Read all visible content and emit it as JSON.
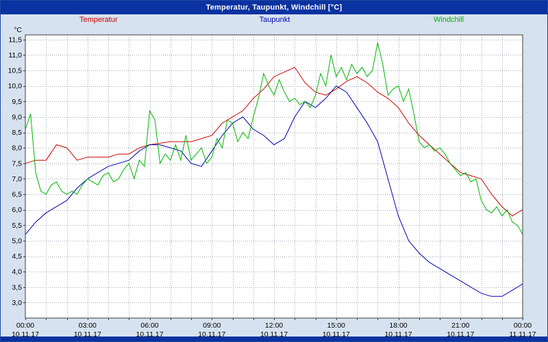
{
  "titlebar": {
    "title": "Temperatur, Taupunkt, Windchill [°C]"
  },
  "legend": {
    "items": [
      {
        "label": "Temperatur",
        "color": "#cc0000"
      },
      {
        "label": "Taupunkt",
        "color": "#0000b0"
      },
      {
        "label": "Windchill",
        "color": "#00b400"
      }
    ]
  },
  "chart_data": {
    "type": "line",
    "title": "Temperatur, Taupunkt, Windchill [°C]",
    "y_unit_label": "°C",
    "ylim": [
      2.5,
      11.65
    ],
    "y_ticks": {
      "values": [
        11.5,
        11.0,
        10.5,
        10.0,
        9.5,
        9.0,
        8.5,
        8.0,
        7.5,
        7.0,
        6.5,
        6.0,
        5.5,
        5.0,
        4.5,
        4.0,
        3.5,
        3.0
      ],
      "labels": [
        "11,5",
        "11,0",
        "10,5",
        "10,0",
        "9,5",
        "9,0",
        "8,5",
        "8,0",
        "7,5",
        "7,0",
        "6,5",
        "6,0",
        "5,5",
        "5,0",
        "4,5",
        "4,0",
        "3,5",
        "3,0"
      ]
    },
    "x_axis": {
      "hours_range": [
        0,
        24
      ],
      "minor_grid_hours": 1,
      "tick_labels": [
        {
          "hour": 0,
          "time": "00:00",
          "date": "10.11.17"
        },
        {
          "hour": 3,
          "time": "03:00",
          "date": "10.11.17"
        },
        {
          "hour": 6,
          "time": "06:00",
          "date": "10.11.17"
        },
        {
          "hour": 9,
          "time": "09:00",
          "date": "10.11.17"
        },
        {
          "hour": 12,
          "time": "12:00",
          "date": "10.11.17"
        },
        {
          "hour": 15,
          "time": "15:00",
          "date": "10.11.17"
        },
        {
          "hour": 18,
          "time": "18:00",
          "date": "10.11.17"
        },
        {
          "hour": 21,
          "time": "21:00",
          "date": "10.11.17"
        },
        {
          "hour": 24,
          "time": "00:00",
          "date": "11.11.17"
        }
      ]
    },
    "grid": {
      "style": "dotted",
      "color": "#9aa5b1",
      "legend_position": "top"
    },
    "series": [
      {
        "name": "Temperatur",
        "color": "#cc0000",
        "x_start": 0,
        "x_step": 0.5,
        "values": [
          7.5,
          7.6,
          7.6,
          8.1,
          8.0,
          7.6,
          7.7,
          7.7,
          7.7,
          7.8,
          7.8,
          8.0,
          8.1,
          8.15,
          8.2,
          8.2,
          8.2,
          8.3,
          8.4,
          8.8,
          9.0,
          9.2,
          9.6,
          9.9,
          10.3,
          10.45,
          10.6,
          10.1,
          9.8,
          9.7,
          9.9,
          10.15,
          10.3,
          10.1,
          9.8,
          9.6,
          9.3,
          8.8,
          8.4,
          8.1,
          7.8,
          7.5,
          7.2,
          7.1,
          7.0,
          6.5,
          6.1,
          5.8,
          6.0
        ]
      },
      {
        "name": "Taupunkt",
        "color": "#0000b0",
        "x_start": 0,
        "x_step": 0.5,
        "values": [
          5.2,
          5.6,
          5.9,
          6.1,
          6.3,
          6.7,
          7.0,
          7.2,
          7.4,
          7.5,
          7.6,
          7.9,
          8.1,
          8.1,
          8.0,
          7.9,
          7.5,
          7.4,
          7.9,
          8.4,
          8.8,
          9.0,
          8.6,
          8.4,
          8.1,
          8.3,
          9.0,
          9.5,
          9.3,
          9.6,
          10.0,
          9.8,
          9.3,
          8.8,
          8.2,
          7.0,
          5.8,
          5.0,
          4.6,
          4.3,
          4.1,
          3.9,
          3.7,
          3.5,
          3.3,
          3.2,
          3.2,
          3.4,
          3.6
        ]
      },
      {
        "name": "Windchill",
        "color": "#00b400",
        "x_start": 0,
        "x_step": 0.25,
        "values": [
          8.6,
          9.1,
          7.2,
          6.6,
          6.5,
          6.8,
          6.9,
          6.6,
          6.5,
          6.6,
          6.5,
          6.8,
          7.0,
          6.9,
          6.8,
          7.1,
          7.2,
          6.9,
          7.0,
          7.3,
          7.5,
          7.0,
          7.6,
          7.4,
          9.2,
          8.9,
          7.5,
          7.8,
          7.6,
          8.1,
          7.6,
          8.4,
          7.6,
          7.8,
          8.0,
          7.5,
          7.7,
          8.3,
          8.0,
          8.9,
          8.8,
          8.2,
          8.5,
          8.3,
          9.0,
          9.6,
          10.4,
          10.0,
          9.7,
          10.2,
          9.8,
          9.5,
          9.6,
          9.4,
          9.5,
          9.3,
          9.7,
          10.4,
          10.0,
          11.0,
          10.3,
          10.6,
          10.2,
          10.7,
          10.4,
          10.6,
          10.3,
          10.5,
          11.4,
          10.7,
          9.7,
          9.9,
          10.0,
          9.5,
          9.9,
          9.1,
          8.2,
          8.0,
          8.1,
          7.9,
          8.0,
          7.8,
          7.5,
          7.3,
          7.1,
          7.2,
          6.9,
          7.0,
          6.3,
          6.0,
          5.9,
          6.1,
          5.8,
          6.0,
          5.6,
          5.5,
          5.2
        ]
      }
    ]
  }
}
